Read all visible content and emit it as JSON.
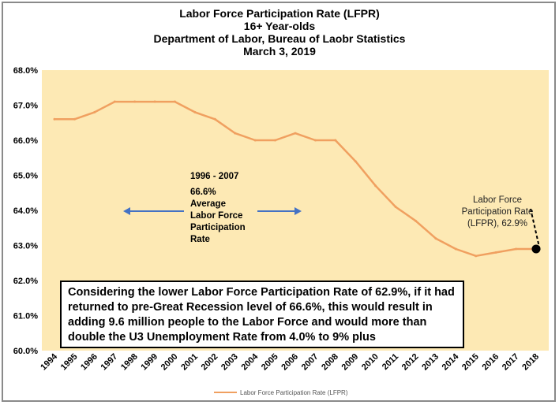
{
  "chart_data": {
    "type": "line",
    "title_lines": [
      "Labor Force Participation Rate (LFPR)",
      "16+ Year-olds",
      "Department of Labor, Bureau of Laobr Statistics",
      "March 3, 2019"
    ],
    "x": [
      "1994",
      "1995",
      "1996",
      "1997",
      "1998",
      "1999",
      "2000",
      "2001",
      "2002",
      "2003",
      "2004",
      "2005",
      "2006",
      "2007",
      "2008",
      "2009",
      "2010",
      "2011",
      "2012",
      "2013",
      "2014",
      "2015",
      "2016",
      "2017",
      "2018"
    ],
    "series": [
      {
        "name": "Labor Force Participation Rate (LFPR)",
        "values": [
          66.6,
          66.6,
          66.8,
          67.1,
          67.1,
          67.1,
          67.1,
          66.8,
          66.6,
          66.2,
          66.0,
          66.0,
          66.2,
          66.0,
          66.0,
          65.4,
          64.7,
          64.1,
          63.7,
          63.2,
          62.9,
          62.7,
          62.8,
          62.9,
          62.9
        ],
        "color": "#f0a060"
      }
    ],
    "ylim": [
      60.0,
      68.0
    ],
    "yticks": [
      "60.0%",
      "61.0%",
      "62.0%",
      "63.0%",
      "64.0%",
      "65.0%",
      "66.0%",
      "67.0%",
      "68.0%"
    ],
    "grid": false,
    "plot_background": "#fde9b4",
    "legend_position": "bottom",
    "annotations": {
      "range_label": "1996 - 2007",
      "avg_lines": [
        "66.6%",
        "Average",
        "Labor Force",
        "Participation",
        "Rate"
      ],
      "end_label_lines": [
        "Labor Force",
        "Participation Rate",
        "(LFPR), 62.9%"
      ],
      "arrow_color": "#4472c4"
    },
    "note_text": "Considering the lower Labor Force Participation Rate of 62.9%, if it had returned to pre-Great Recession level of 66.6%, this would result in adding 9.6 million people to the Labor Force and would more than double the U3 Unemployment Rate from 4.0% to 9% plus"
  }
}
